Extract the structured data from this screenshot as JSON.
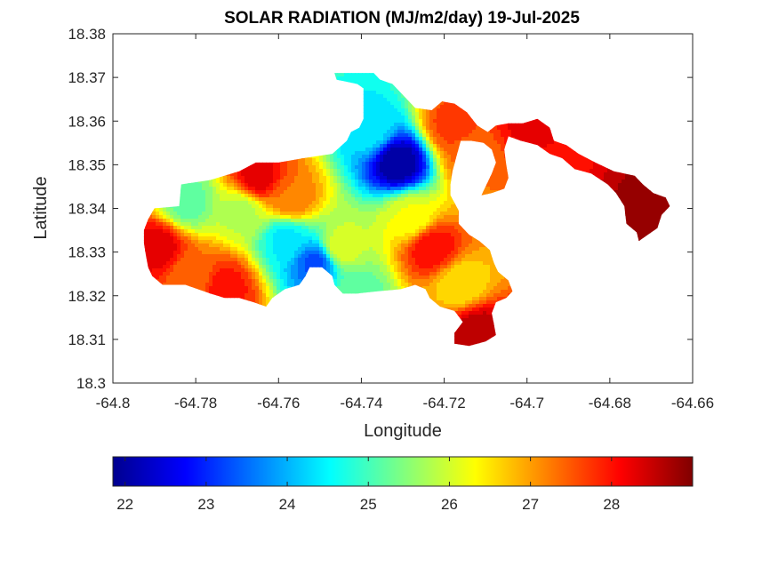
{
  "chart_data": {
    "type": "heatmap",
    "title": "SOLAR RADIATION (MJ/m2/day) 19-Jul-2025",
    "xlabel": "Longitude",
    "ylabel": "Latitude",
    "xlim": [
      -64.8,
      -64.66
    ],
    "ylim": [
      18.3,
      18.38
    ],
    "x_ticks": [
      "-64.8",
      "-64.78",
      "-64.76",
      "-64.74",
      "-64.72",
      "-64.7",
      "-64.68",
      "-64.66"
    ],
    "y_ticks": [
      "18.3",
      "18.31",
      "18.32",
      "18.33",
      "18.34",
      "18.35",
      "18.36",
      "18.37",
      "18.38"
    ],
    "grid": false,
    "colormap": "jet",
    "colorbar": {
      "orientation": "horizontal",
      "location": "bottom",
      "range": [
        21.85,
        29.0
      ],
      "ticks": [
        "22",
        "23",
        "24",
        "25",
        "26",
        "27",
        "28"
      ]
    },
    "hotspots": [
      {
        "lon": -64.731,
        "lat": 18.3505,
        "value": 22.0
      },
      {
        "lon": -64.751,
        "lat": 18.3275,
        "value": 23.3
      },
      {
        "lon": -64.758,
        "lat": 18.333,
        "value": 24.4
      },
      {
        "lon": -64.738,
        "lat": 18.358,
        "value": 24.4
      },
      {
        "lon": -64.782,
        "lat": 18.3415,
        "value": 25.2
      },
      {
        "lon": -64.769,
        "lat": 18.3395,
        "value": 25.8
      },
      {
        "lon": -64.741,
        "lat": 18.3205,
        "value": 25.2
      },
      {
        "lon": -64.745,
        "lat": 18.331,
        "value": 26.1
      },
      {
        "lon": -64.728,
        "lat": 18.338,
        "value": 26.2
      },
      {
        "lon": -64.765,
        "lat": 18.347,
        "value": 28.3
      },
      {
        "lon": -64.757,
        "lat": 18.342,
        "value": 27.3
      },
      {
        "lon": -64.723,
        "lat": 18.331,
        "value": 28.1
      },
      {
        "lon": -64.716,
        "lat": 18.3225,
        "value": 26.5
      },
      {
        "lon": -64.718,
        "lat": 18.359,
        "value": 27.7
      },
      {
        "lon": -64.713,
        "lat": 18.352,
        "value": 27.4
      },
      {
        "lon": -64.789,
        "lat": 18.331,
        "value": 28.3
      },
      {
        "lon": -64.781,
        "lat": 18.3245,
        "value": 27.3
      },
      {
        "lon": -64.712,
        "lat": 18.312,
        "value": 28.6
      },
      {
        "lon": -64.7,
        "lat": 18.36,
        "value": 28.2
      },
      {
        "lon": -64.668,
        "lat": 18.339,
        "value": 28.8
      },
      {
        "lon": -64.773,
        "lat": 18.322,
        "value": 28.0
      }
    ],
    "regions": [
      [
        [
          -64.7915,
          18.3375
        ],
        [
          -64.79,
          18.34
        ],
        [
          -64.784,
          18.3405
        ],
        [
          -64.7835,
          18.3455
        ],
        [
          -64.7765,
          18.3465
        ],
        [
          -64.7695,
          18.3485
        ],
        [
          -64.7655,
          18.3505
        ],
        [
          -64.76,
          18.3505
        ],
        [
          -64.754,
          18.3515
        ],
        [
          -64.747,
          18.3525
        ],
        [
          -64.7435,
          18.3555
        ],
        [
          -64.7425,
          18.3575
        ],
        [
          -64.7405,
          18.3585
        ],
        [
          -64.7395,
          18.3605
        ],
        [
          -64.7395,
          18.3675
        ],
        [
          -64.741,
          18.3685
        ],
        [
          -64.746,
          18.3695
        ],
        [
          -64.7465,
          18.371
        ],
        [
          -64.737,
          18.371
        ],
        [
          -64.7355,
          18.3695
        ],
        [
          -64.7325,
          18.3685
        ],
        [
          -64.7285,
          18.3645
        ],
        [
          -64.727,
          18.363
        ],
        [
          -64.723,
          18.3625
        ],
        [
          -64.7205,
          18.3645
        ],
        [
          -64.7175,
          18.364
        ],
        [
          -64.7145,
          18.362
        ],
        [
          -64.712,
          18.359
        ],
        [
          -64.7095,
          18.3575
        ],
        [
          -64.7075,
          18.359
        ],
        [
          -64.7045,
          18.3595
        ],
        [
          -64.701,
          18.3595
        ],
        [
          -64.6975,
          18.3605
        ],
        [
          -64.6945,
          18.3585
        ],
        [
          -64.6935,
          18.3555
        ],
        [
          -64.6905,
          18.3545
        ],
        [
          -64.6875,
          18.3525
        ],
        [
          -64.6835,
          18.3505
        ],
        [
          -64.679,
          18.3485
        ],
        [
          -64.674,
          18.3475
        ],
        [
          -64.672,
          18.3455
        ],
        [
          -64.6695,
          18.3435
        ],
        [
          -64.6665,
          18.3425
        ],
        [
          -64.6655,
          18.3405
        ],
        [
          -64.6675,
          18.3385
        ],
        [
          -64.6685,
          18.3355
        ],
        [
          -64.6715,
          18.3335
        ],
        [
          -64.673,
          18.3325
        ],
        [
          -64.6735,
          18.3345
        ],
        [
          -64.676,
          18.3365
        ],
        [
          -64.6765,
          18.3405
        ],
        [
          -64.6785,
          18.3435
        ],
        [
          -64.6805,
          18.3455
        ],
        [
          -64.6845,
          18.348
        ],
        [
          -64.6885,
          18.349
        ],
        [
          -64.6915,
          18.3515
        ],
        [
          -64.6945,
          18.3525
        ],
        [
          -64.6975,
          18.3545
        ],
        [
          -64.7015,
          18.3555
        ],
        [
          -64.7045,
          18.3565
        ],
        [
          -64.7055,
          18.3535
        ],
        [
          -64.705,
          18.35
        ],
        [
          -64.7045,
          18.347
        ],
        [
          -64.7055,
          18.3445
        ],
        [
          -64.7085,
          18.3435
        ],
        [
          -64.711,
          18.343
        ],
        [
          -64.7105,
          18.344
        ],
        [
          -64.7095,
          18.346
        ],
        [
          -64.7085,
          18.348
        ],
        [
          -64.7075,
          18.3505
        ],
        [
          -64.7085,
          18.3535
        ],
        [
          -64.7105,
          18.355
        ],
        [
          -64.7135,
          18.3555
        ],
        [
          -64.716,
          18.3555
        ],
        [
          -64.717,
          18.352
        ],
        [
          -64.718,
          18.3485
        ],
        [
          -64.7185,
          18.3455
        ],
        [
          -64.7185,
          18.343
        ],
        [
          -64.7165,
          18.3395
        ],
        [
          -64.7165,
          18.3365
        ],
        [
          -64.714,
          18.334
        ],
        [
          -64.7115,
          18.3325
        ],
        [
          -64.709,
          18.3305
        ],
        [
          -64.708,
          18.3275
        ],
        [
          -64.707,
          18.3255
        ],
        [
          -64.7045,
          18.3235
        ],
        [
          -64.7035,
          18.321
        ],
        [
          -64.705,
          18.3195
        ],
        [
          -64.7075,
          18.3185
        ],
        [
          -64.7085,
          18.316
        ],
        [
          -64.708,
          18.3135
        ],
        [
          -64.7075,
          18.311
        ],
        [
          -64.71,
          18.3095
        ],
        [
          -64.714,
          18.3085
        ],
        [
          -64.7175,
          18.309
        ],
        [
          -64.7175,
          18.3115
        ],
        [
          -64.7155,
          18.314
        ],
        [
          -64.7175,
          18.3165
        ],
        [
          -64.721,
          18.3175
        ],
        [
          -64.7235,
          18.3195
        ],
        [
          -64.7245,
          18.3215
        ],
        [
          -64.727,
          18.3225
        ],
        [
          -64.7305,
          18.3215
        ],
        [
          -64.736,
          18.321
        ],
        [
          -64.741,
          18.3205
        ],
        [
          -64.7445,
          18.3205
        ],
        [
          -64.7465,
          18.3225
        ],
        [
          -64.747,
          18.3245
        ],
        [
          -64.7495,
          18.3265
        ],
        [
          -64.7525,
          18.3265
        ],
        [
          -64.7535,
          18.3245
        ],
        [
          -64.755,
          18.3225
        ],
        [
          -64.7585,
          18.3215
        ],
        [
          -64.7615,
          18.3195
        ],
        [
          -64.763,
          18.3175
        ],
        [
          -64.766,
          18.3185
        ],
        [
          -64.7695,
          18.3195
        ],
        [
          -64.773,
          18.3195
        ],
        [
          -64.7765,
          18.3205
        ],
        [
          -64.7795,
          18.3215
        ],
        [
          -64.7825,
          18.3225
        ],
        [
          -64.7855,
          18.3225
        ],
        [
          -64.788,
          18.3225
        ],
        [
          -64.7905,
          18.3245
        ],
        [
          -64.7915,
          18.3265
        ],
        [
          -64.792,
          18.329
        ],
        [
          -64.7925,
          18.332
        ],
        [
          -64.7925,
          18.335
        ]
      ]
    ]
  }
}
